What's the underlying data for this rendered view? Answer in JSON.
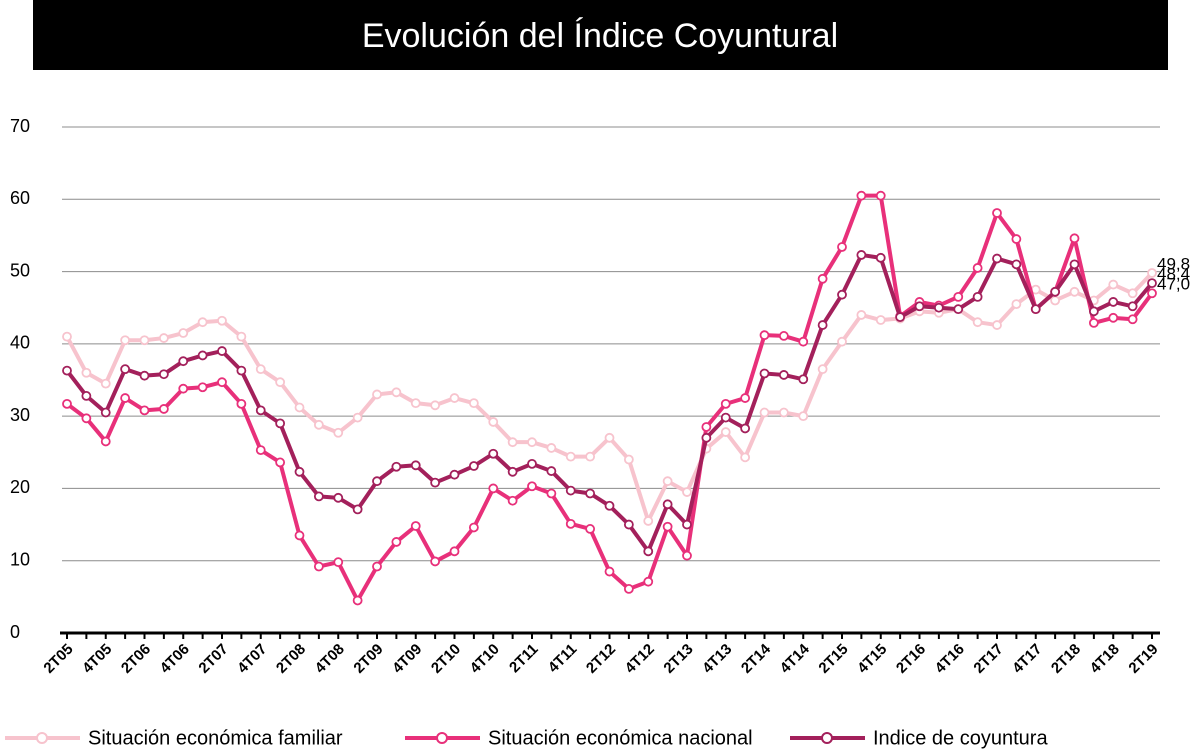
{
  "chart_data": {
    "type": "line",
    "title": "Evolución del Índice Coyuntural",
    "categories": [
      "2T05",
      null,
      "4T05",
      null,
      "2T06",
      null,
      "4T06",
      null,
      "2T07",
      null,
      "4T07",
      null,
      "2T08",
      null,
      "4T08",
      null,
      "2T09",
      null,
      "4T09",
      null,
      "2T10",
      null,
      "4T10",
      null,
      "2T11",
      null,
      "4T11",
      null,
      "2T12",
      null,
      "4T12",
      null,
      "2T13",
      null,
      "4T13",
      null,
      "2T14",
      null,
      "4T14",
      null,
      "2T15",
      null,
      "4T15",
      null,
      "2T16",
      null,
      "4T16",
      null,
      "2T17",
      null,
      "4T17",
      null,
      "2T18",
      null,
      "4T18",
      null,
      "2T19"
    ],
    "series": [
      {
        "name": "Situación económica familiar",
        "color": "#f7c3cd",
        "values": [
          41,
          36,
          34.5,
          40.5,
          40.5,
          40.8,
          41.5,
          43,
          43.2,
          41,
          36.5,
          34.7,
          31.2,
          28.8,
          27.7,
          29.8,
          33,
          33.3,
          31.8,
          31.5,
          32.5,
          31.8,
          29.2,
          26.4,
          26.4,
          25.6,
          24.4,
          24.4,
          27,
          24,
          15.5,
          21,
          19.5,
          25.5,
          27.8,
          24.3,
          30.5,
          30.5,
          30,
          36.5,
          40.3,
          44,
          43.3,
          43.5,
          44.5,
          44.3,
          44.8,
          43,
          42.6,
          45.5,
          47.5,
          46,
          47.2,
          46,
          48.2,
          47,
          49.8
        ],
        "value_labels": [
          null,
          null,
          null,
          null,
          null,
          null,
          null,
          null,
          null,
          null,
          null,
          null,
          null,
          null,
          null,
          null,
          null,
          null,
          null,
          null,
          null,
          null,
          null,
          null,
          null,
          null,
          null,
          null,
          null,
          null,
          null,
          null,
          null,
          null,
          null,
          null,
          null,
          null,
          null,
          null,
          null,
          null,
          null,
          null,
          null,
          null,
          null,
          null,
          null,
          null,
          null,
          null,
          null,
          null,
          null,
          null,
          "49,8"
        ]
      },
      {
        "name": "Situación económica nacional",
        "color": "#e8307a",
        "values": [
          31.7,
          29.7,
          26.5,
          32.5,
          30.8,
          31,
          33.8,
          34,
          34.7,
          31.7,
          25.3,
          23.6,
          13.5,
          9.2,
          9.8,
          4.5,
          9.2,
          12.6,
          14.8,
          9.9,
          11.3,
          14.6,
          20,
          18.3,
          20.3,
          19.3,
          15.1,
          14.4,
          8.5,
          6.1,
          7.1,
          14.7,
          10.7,
          28.5,
          31.7,
          32.5,
          41.2,
          41.1,
          40.3,
          49,
          53.4,
          60.5,
          60.5,
          43.8,
          45.8,
          45.3,
          46.5,
          50.5,
          58.1,
          54.5,
          44.8,
          47.2,
          54.6,
          42.9,
          43.6,
          43.4,
          47.0
        ],
        "value_labels": [
          null,
          null,
          null,
          null,
          null,
          null,
          null,
          null,
          null,
          null,
          null,
          null,
          null,
          null,
          null,
          null,
          null,
          null,
          null,
          null,
          null,
          null,
          null,
          null,
          null,
          null,
          null,
          null,
          null,
          null,
          null,
          null,
          null,
          null,
          null,
          null,
          null,
          null,
          null,
          null,
          null,
          null,
          null,
          null,
          null,
          null,
          null,
          null,
          null,
          null,
          null,
          null,
          null,
          null,
          null,
          null,
          "47,0"
        ]
      },
      {
        "name": "Indice de coyuntura",
        "color": "#a3205b",
        "values": [
          36.3,
          32.8,
          30.5,
          36.5,
          35.6,
          35.8,
          37.6,
          38.4,
          39,
          36.3,
          30.8,
          29,
          22.3,
          18.9,
          18.7,
          17.1,
          21,
          23,
          23.2,
          20.8,
          21.9,
          23.1,
          24.8,
          22.3,
          23.4,
          22.4,
          19.7,
          19.3,
          17.6,
          15,
          11.3,
          17.8,
          15,
          27,
          29.8,
          28.3,
          35.9,
          35.7,
          35.1,
          42.6,
          46.8,
          52.3,
          51.9,
          43.7,
          45.2,
          45,
          44.8,
          46.5,
          51.8,
          51,
          44.8,
          47.2,
          51,
          44.5,
          45.8,
          45.2,
          48.4
        ],
        "value_labels": [
          null,
          null,
          null,
          null,
          null,
          null,
          null,
          null,
          null,
          null,
          null,
          null,
          null,
          null,
          null,
          null,
          null,
          null,
          null,
          null,
          null,
          null,
          null,
          null,
          null,
          null,
          null,
          null,
          null,
          null,
          null,
          null,
          null,
          null,
          null,
          null,
          null,
          null,
          null,
          null,
          null,
          null,
          null,
          null,
          null,
          null,
          null,
          null,
          null,
          null,
          null,
          null,
          null,
          null,
          null,
          null,
          "48,4"
        ]
      }
    ],
    "ylim": [
      0,
      70
    ],
    "yticks": [
      0,
      10,
      20,
      30,
      40,
      50,
      60,
      70
    ],
    "grid": true,
    "legend": "bottom"
  }
}
